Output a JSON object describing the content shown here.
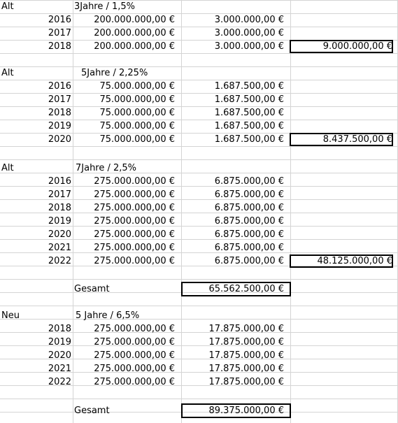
{
  "sections": [
    {
      "label": "Alt",
      "header": "3Jahre  / 1,5%",
      "rows": [
        {
          "year": "2016",
          "amount": "200.000.000,00 €",
          "interest": "3.000.000,00 €"
        },
        {
          "year": "2017",
          "amount": "200.000.000,00 €",
          "interest": "3.000.000,00 €"
        },
        {
          "year": "2018",
          "amount": "200.000.000,00 €",
          "interest": "3.000.000,00 €"
        }
      ],
      "sum": "9.000.000,00 €"
    },
    {
      "label": "Alt",
      "header": "5Jahre  / 2,25%",
      "rows": [
        {
          "year": "2016",
          "amount": "75.000.000,00 €",
          "interest": "1.687.500,00 €"
        },
        {
          "year": "2017",
          "amount": "75.000.000,00 €",
          "interest": "1.687.500,00 €"
        },
        {
          "year": "2018",
          "amount": "75.000.000,00 €",
          "interest": "1.687.500,00 €"
        },
        {
          "year": "2019",
          "amount": "75.000.000,00 €",
          "interest": "1.687.500,00 €"
        },
        {
          "year": "2020",
          "amount": "75.000.000,00 €",
          "interest": "1.687.500,00 €"
        }
      ],
      "sum": "8.437.500,00 €"
    },
    {
      "label": "Alt",
      "header": "7Jahre  / 2,5%",
      "rows": [
        {
          "year": "2016",
          "amount": "275.000.000,00 €",
          "interest": "6.875.000,00 €"
        },
        {
          "year": "2017",
          "amount": "275.000.000,00 €",
          "interest": "6.875.000,00 €"
        },
        {
          "year": "2018",
          "amount": "275.000.000,00 €",
          "interest": "6.875.000,00 €"
        },
        {
          "year": "2019",
          "amount": "275.000.000,00 €",
          "interest": "6.875.000,00 €"
        },
        {
          "year": "2020",
          "amount": "275.000.000,00 €",
          "interest": "6.875.000,00 €"
        },
        {
          "year": "2021",
          "amount": "275.000.000,00 €",
          "interest": "6.875.000,00 €"
        },
        {
          "year": "2022",
          "amount": "275.000.000,00 €",
          "interest": "6.875.000,00 €"
        }
      ],
      "sum": "48.125.000,00 €"
    }
  ],
  "total_old": {
    "label": "Gesamt",
    "value": "65.562.500,00 €"
  },
  "new_section": {
    "label": "Neu",
    "header": "5 Jahre  / 6,5%",
    "rows": [
      {
        "year": "2018",
        "amount": "275.000.000,00 €",
        "interest": "17.875.000,00 €"
      },
      {
        "year": "2019",
        "amount": "275.000.000,00 €",
        "interest": "17.875.000,00 €"
      },
      {
        "year": "2020",
        "amount": "275.000.000,00 €",
        "interest": "17.875.000,00 €"
      },
      {
        "year": "2021",
        "amount": "275.000.000,00 €",
        "interest": "17.875.000,00 €"
      },
      {
        "year": "2022",
        "amount": "275.000.000,00 €",
        "interest": "17.875.000,00 €"
      }
    ]
  },
  "total_new": {
    "label": "Gesamt",
    "value": "89.375.000,00 €"
  }
}
